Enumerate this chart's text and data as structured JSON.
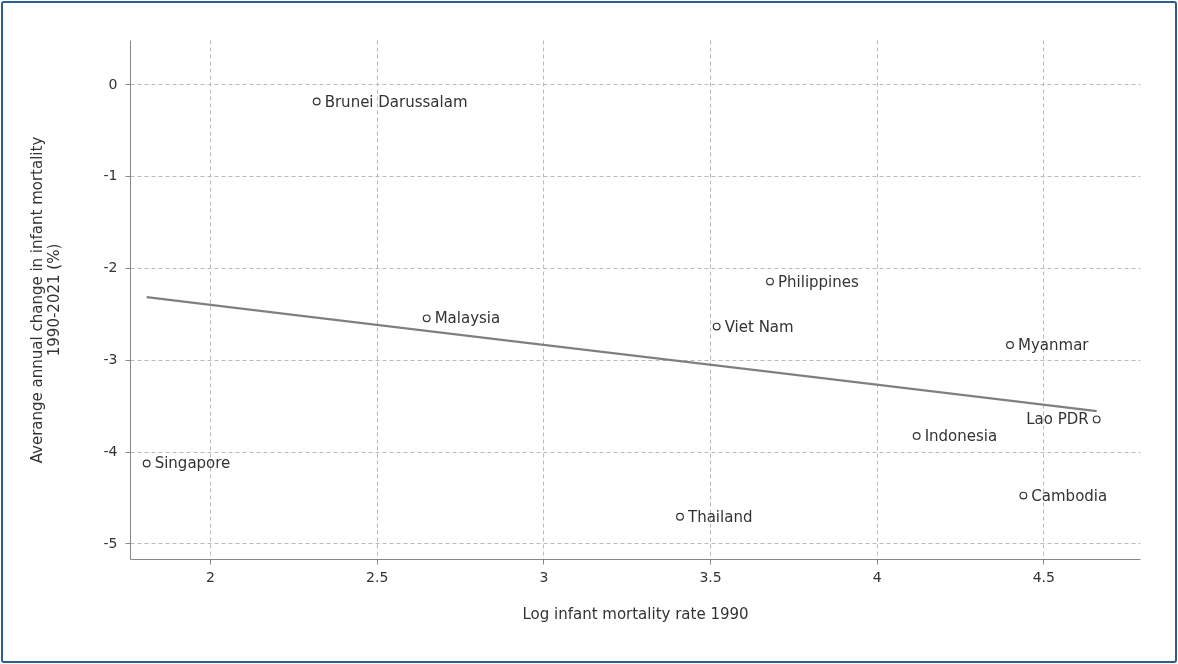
{
  "chart_data": {
    "type": "scatter",
    "xlabel": "Log infant mortality rate 1990",
    "ylabel": "Averange annual change in infant mortality 1990-2021 (%)",
    "series": [
      {
        "marker": "circle",
        "color": "#333333",
        "x": [
          2.32,
          2.65,
          1.81,
          3.68,
          3.52,
          4.4,
          4.66,
          4.12,
          4.44,
          3.41
        ],
        "values": [
          -0.19,
          -2.55,
          -4.13,
          -2.15,
          -2.64,
          -2.84,
          -3.65,
          -3.83,
          -4.48,
          -4.71
        ]
      },
      {
        "type": "line",
        "color": "#7f7f7f",
        "x": [
          1.81,
          4.66
        ],
        "values": [
          -2.32,
          -3.56
        ]
      }
    ],
    "annotations": [
      {
        "text": "Brunei Darussalam",
        "x": 2.32,
        "y": -0.19
      },
      {
        "text": "Malaysia",
        "x": 2.65,
        "y": -2.55
      },
      {
        "text": "Singapore",
        "x": 1.81,
        "y": -4.13
      },
      {
        "text": "Philippines",
        "x": 3.68,
        "y": -2.15
      },
      {
        "text": "Viet Nam",
        "x": 3.52,
        "y": -2.64
      },
      {
        "text": "Myanmar",
        "x": 4.4,
        "y": -2.84
      },
      {
        "text": "Lao PDR",
        "x": 4.66,
        "y": -3.65
      },
      {
        "text": "Indonesia",
        "x": 4.12,
        "y": -3.83
      },
      {
        "text": "Cambodia",
        "x": 4.44,
        "y": -4.48
      },
      {
        "text": "Thailand",
        "x": 3.41,
        "y": -4.71
      }
    ],
    "xlim": [
      1.76,
      4.79
    ],
    "xticks": [
      2,
      2.5,
      3,
      3.5,
      4,
      4.5
    ],
    "ylim": [
      -5.17,
      0.48
    ],
    "yticks": [
      0,
      -1,
      -2,
      -3,
      -4,
      -5
    ],
    "grid": true
  }
}
